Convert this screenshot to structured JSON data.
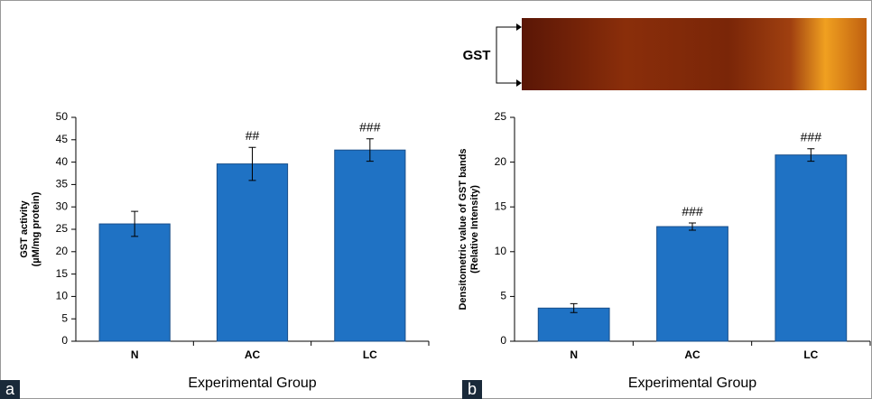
{
  "chart_data": [
    {
      "type": "bar",
      "panel": "a",
      "categories": [
        "N",
        "AC",
        "LC"
      ],
      "values": [
        26.2,
        39.6,
        42.7
      ],
      "errors": [
        2.8,
        3.7,
        2.5
      ],
      "annotations": [
        null,
        "##",
        "###"
      ],
      "color": "#1f72c4",
      "ylabel": [
        "GST activity",
        "(µM/mg protein)"
      ],
      "xlabel": "Experimental Group",
      "ylim": [
        0,
        50
      ],
      "yticks": [
        0,
        5,
        10,
        15,
        20,
        25,
        30,
        35,
        40,
        45,
        50
      ]
    },
    {
      "type": "bar",
      "panel": "b",
      "gel_label": "GST",
      "categories": [
        "N",
        "AC",
        "LC"
      ],
      "values": [
        3.7,
        12.8,
        20.8
      ],
      "errors": [
        0.5,
        0.4,
        0.7
      ],
      "annotations": [
        null,
        "###",
        "###"
      ],
      "color": "#1f72c4",
      "ylabel": [
        "Densitometric value of GST bands",
        "(Relative Intensity)"
      ],
      "xlabel": "Experimental Group",
      "ylim": [
        0,
        25
      ],
      "yticks": [
        0,
        5,
        10,
        15,
        20,
        25
      ]
    }
  ]
}
